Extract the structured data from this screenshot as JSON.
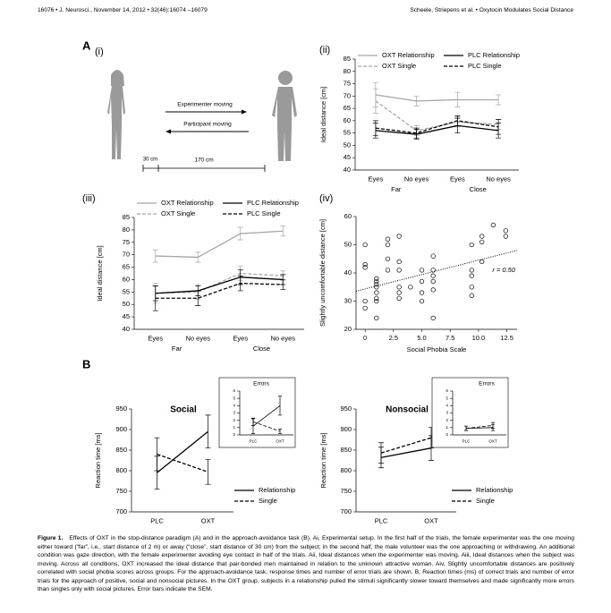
{
  "header": {
    "left": "16076 • J. Neurosci., November 14, 2012 • 32(46):16074 –16079",
    "right": "Scheele, Striepens et al. • Oxytocin Modulates Social Distance"
  },
  "panel_labels": [
    "A",
    "(i)",
    "(ii)",
    "(iii)",
    "(iv)",
    "B"
  ],
  "diagram": {
    "arrows": [
      "Experimenter moving",
      "Participant moving"
    ],
    "scale": [
      "30 cm",
      "170 cm"
    ]
  },
  "chart_data": [
    {
      "type": "line",
      "ylabel": "Ideal distance [cm]",
      "categories": [
        "Eyes",
        "No eyes",
        "Eyes",
        "No eyes"
      ],
      "groups": [
        "Far",
        "Close"
      ],
      "ylim": [
        40,
        85
      ],
      "yticks": [
        40,
        45,
        50,
        55,
        60,
        65,
        70,
        75,
        80,
        85
      ],
      "legend": "top",
      "series": [
        {
          "name": "OXT Relationship",
          "color": "#a6a6a6",
          "line_style": "solid",
          "values": [
            70.5,
            68,
            68.5,
            68.5
          ],
          "errors": [
            5,
            2,
            3,
            2
          ]
        },
        {
          "name": "OXT Single",
          "color": "#a6a6a6",
          "line_style": "dashed",
          "values": [
            68,
            56,
            59.5,
            58.5
          ],
          "errors": [
            5,
            2,
            2,
            2
          ]
        },
        {
          "name": "PLC Relationship",
          "color": "#000000",
          "line_style": "solid",
          "values": [
            56,
            54.5,
            58,
            56
          ],
          "errors": [
            3,
            2,
            3,
            3
          ]
        },
        {
          "name": "PLC Single",
          "color": "#000000",
          "line_style": "dashed",
          "values": [
            57,
            55,
            60,
            57.5
          ],
          "errors": [
            3,
            2,
            2,
            3
          ]
        }
      ]
    },
    {
      "type": "line",
      "ylabel": "Ideal distance [cm]",
      "categories": [
        "Eyes",
        "No eyes",
        "Eyes",
        "No eyes"
      ],
      "groups": [
        "Far",
        "Close"
      ],
      "ylim": [
        40,
        85
      ],
      "yticks": [
        40,
        45,
        50,
        55,
        60,
        65,
        70,
        75,
        80,
        85
      ],
      "legend": "top",
      "series": [
        {
          "name": "OXT Relationship",
          "color": "#a6a6a6",
          "line_style": "solid",
          "values": [
            69.5,
            69,
            78.5,
            79.5
          ],
          "errors": [
            2.5,
            2,
            2.5,
            2
          ]
        },
        {
          "name": "OXT Single",
          "color": "#a6a6a6",
          "line_style": "dashed",
          "values": [
            54.5,
            55,
            62.5,
            61.5
          ],
          "errors": [
            4,
            3,
            3,
            2
          ]
        },
        {
          "name": "PLC Relationship",
          "color": "#000000",
          "line_style": "solid",
          "values": [
            54.5,
            55.5,
            61,
            60
          ],
          "errors": [
            3,
            2,
            3,
            2
          ]
        },
        {
          "name": "PLC Single",
          "color": "#000000",
          "line_style": "dashed",
          "values": [
            52.5,
            52.5,
            58.5,
            58
          ],
          "errors": [
            5,
            3,
            3,
            2
          ]
        }
      ]
    },
    {
      "type": "scatter",
      "xlabel": "Social Phobia Scale",
      "ylabel": "Slightly uncomfortable distance [cm]",
      "annotation": "r = 0.50",
      "xlim": [
        -0.8,
        13.4
      ],
      "xticks": [
        0,
        2.5,
        {
          "value": 5,
          "label": "5.0"
        },
        7.5,
        {
          "value": 10,
          "label": "10.0"
        },
        12.5
      ],
      "ylim": [
        20,
        60
      ],
      "yticks": [
        20,
        30,
        40,
        50,
        60
      ],
      "color": "#000000",
      "x": [
        0,
        0,
        0,
        0,
        0,
        1,
        1,
        1,
        1,
        1,
        1,
        1,
        1,
        2,
        2,
        2,
        2,
        3,
        3,
        3,
        3,
        3,
        3,
        4,
        5,
        5,
        5,
        5,
        6,
        6,
        6,
        6,
        6,
        6,
        9.4,
        9.4,
        9.4,
        9.4,
        9.4,
        10.3,
        10.3,
        10.3,
        11.3,
        12.4,
        12.4
      ],
      "y": [
        50,
        43,
        42,
        30,
        27.5,
        38,
        37,
        36,
        35,
        33,
        31,
        30,
        24,
        52,
        50,
        45,
        41,
        53,
        44,
        41,
        35,
        33,
        31,
        35,
        41,
        37,
        33,
        30,
        46,
        41,
        39,
        37,
        34,
        24,
        50,
        41,
        39,
        35,
        32,
        53,
        51,
        44,
        57,
        55,
        53
      ],
      "trendline": {
        "x": [
          -0.8,
          13.4
        ],
        "y": [
          33.5,
          48
        ]
      }
    },
    {
      "type": "line",
      "title": "Social",
      "ylabel": "Reaction time [ms]",
      "categories": [
        "PLC",
        "OXT"
      ],
      "ylim": [
        700,
        950
      ],
      "yticks": [
        700,
        750,
        800,
        850,
        900,
        950
      ],
      "legend": "lower right",
      "series": [
        {
          "name": "Relationship",
          "color": "#000000",
          "line_style": "solid",
          "values": [
            795,
            895
          ],
          "errors": [
            40,
            40
          ]
        },
        {
          "name": "Single",
          "color": "#000000",
          "line_style": "dashed",
          "values": [
            840,
            797
          ],
          "errors": [
            40,
            30
          ]
        }
      ]
    },
    {
      "type": "line",
      "title": "Errors",
      "categories": [
        "PLC",
        "OXT"
      ],
      "ylim": [
        0,
        6
      ],
      "yticks": [
        0,
        1,
        2,
        3,
        4,
        5,
        6
      ],
      "series": [
        {
          "color": "#000000",
          "line_style": "solid",
          "values": [
            1.2,
            4
          ],
          "errors": [
            1,
            1.3
          ]
        },
        {
          "color": "#000000",
          "line_style": "dashed",
          "values": [
            1.8,
            0.5
          ],
          "errors": [
            0.5,
            0.3
          ]
        }
      ]
    },
    {
      "type": "line",
      "title": "Nonsocial",
      "ylabel": "Reaction time [ms]",
      "categories": [
        "PLC",
        "OXT"
      ],
      "ylim": [
        700,
        950
      ],
      "yticks": [
        700,
        750,
        800,
        850,
        900,
        950
      ],
      "legend": "lower right",
      "series": [
        {
          "name": "Relationship",
          "color": "#000000",
          "line_style": "solid",
          "values": [
            832,
            855
          ],
          "errors": [
            25,
            30
          ]
        },
        {
          "name": "Single",
          "color": "#000000",
          "line_style": "dashed",
          "values": [
            843,
            880
          ],
          "errors": [
            25,
            25
          ]
        }
      ]
    },
    {
      "type": "line",
      "title": "Errors",
      "categories": [
        "PLC",
        "OXT"
      ],
      "ylim": [
        0,
        6
      ],
      "yticks": [
        0,
        1,
        2,
        3,
        4,
        5,
        6
      ],
      "series": [
        {
          "color": "#000000",
          "line_style": "solid",
          "values": [
            0.9,
            1.0
          ],
          "errors": [
            0.3,
            0.4
          ]
        },
        {
          "color": "#000000",
          "line_style": "dashed",
          "values": [
            0.9,
            1.3
          ],
          "errors": [
            0.3,
            0.4
          ]
        }
      ]
    }
  ],
  "caption": {
    "label": "Figure 1.",
    "text": "Effects of OXT in the stop-distance paradigm (A) and in the approach-avoidance task (B). Ai, Experimental setup. In the first half of the trials, the female experimenter was the one moving either toward (“far”, i.e., start distance of 2 m) or away (“close”, start distance of 30 cm) from the subject; in the second half, the male volunteer was the one approaching or withdrawing. An additional condition was gaze direction, with the female experimenter avoiding eye contact in half of the trials. Aii, Ideal distances when the experimenter was moving. Aiii, Ideal distances when the subject was moving. Across all conditions, OXT increased the ideal distance that pair-bonded men maintained in relation to the unknown attractive woman. Aiv, Slightly uncomfortable distances are positively correlated with social phobia scores across groups. For the approach-avoidance task, response times and number of error trials are shown. B, Reaction times (ms) of correct trials and number of error trials for the approach of positive, social and nonsocial pictures. In the OXT group, subjects in a relationship pulled the stimuli significantly slower toward themselves and made significantly more errors than singles only with social pictures. Error bars indicate the SEM."
  }
}
